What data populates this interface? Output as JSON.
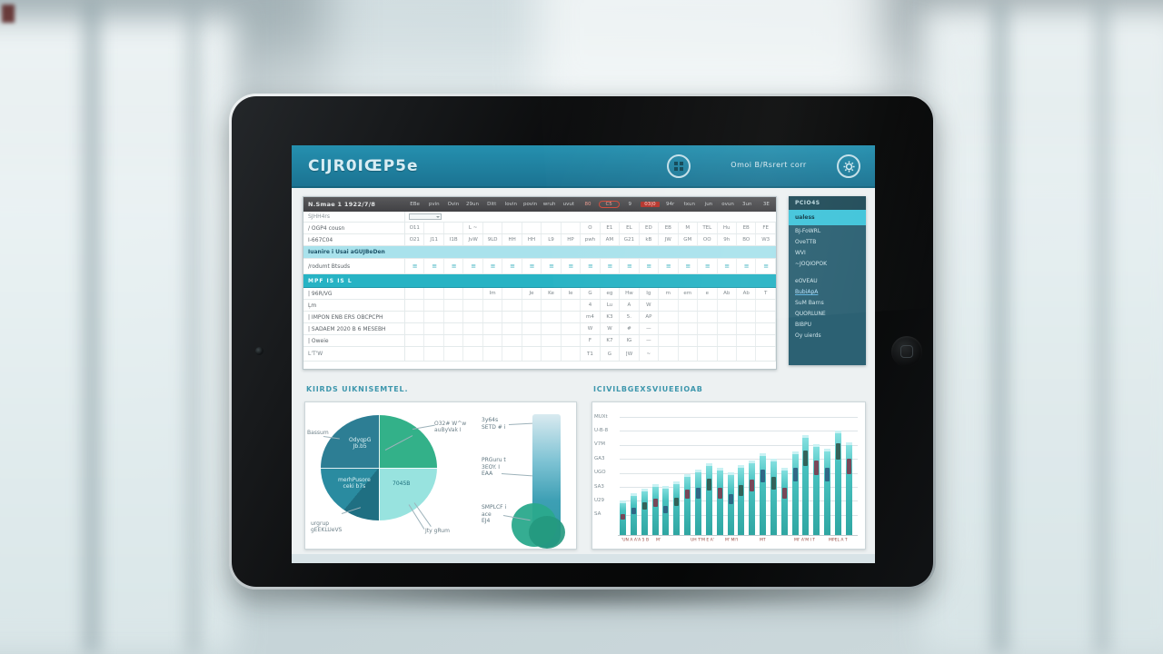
{
  "app": {
    "header": {
      "title": "ClJR0IŒP5e",
      "user": "Omoi B/Rsrert corr",
      "icons": {
        "apps": "apps-grid-icon",
        "settings": "gear-icon"
      }
    },
    "sheet": {
      "toolbar_label": "N.Smae 1 1922/7/8",
      "columns": [
        {
          "t": "EBe"
        },
        {
          "t": "pvin"
        },
        {
          "t": "Ovin"
        },
        {
          "t": "29un"
        },
        {
          "t": "Ditt"
        },
        {
          "t": "lovin"
        },
        {
          "t": "povin"
        },
        {
          "t": "wruh"
        },
        {
          "t": "uvut"
        },
        {
          "t": "80",
          "flag": "tint"
        },
        {
          "t": "C5",
          "flag": "oval"
        },
        {
          "t": "9"
        },
        {
          "t": "03|0",
          "flag": "red"
        },
        {
          "t": "94r"
        },
        {
          "t": "txun"
        },
        {
          "t": "jun"
        },
        {
          "t": "ovun"
        },
        {
          "t": "3un"
        },
        {
          "t": "3E"
        }
      ],
      "rows": [
        {
          "label": "SJHH4rs",
          "style": "sub",
          "cells": []
        },
        {
          "label": "/ OGP4 cousn",
          "style": "plain",
          "cells": [
            "O11",
            "",
            "",
            "L ~",
            "",
            "",
            "",
            "",
            "",
            "O",
            "E1",
            "EL",
            "ED",
            "EB",
            "M",
            "TEL",
            "Hu",
            "EB",
            "FE"
          ]
        },
        {
          "label": "I-667C04",
          "style": "plain",
          "cells": [
            "O21",
            "J11",
            "I1B",
            "JvW",
            "9LD",
            "HH",
            "HH",
            "L9",
            "HP",
            "pwh",
            "AM",
            "G21",
            "kB",
            "JW",
            "GM",
            "OO",
            "9h",
            "BO",
            "W3"
          ]
        },
        {
          "label": "Iuanire i Usai aGUJBeDen",
          "style": "cyan",
          "cells": []
        },
        {
          "label": "/rodumt Btsuds",
          "style": "marks",
          "fill": "≡",
          "cells": []
        },
        {
          "label": "MPF IS IS L",
          "style": "teal",
          "cells": []
        },
        {
          "label": "| 96R/VG",
          "style": "plain",
          "cells": [
            "",
            "",
            "",
            "",
            "Im",
            "",
            "Je",
            "Ke",
            "Ie",
            "G",
            "eg",
            "Hw",
            "Ig",
            "m",
            "em",
            "e",
            "Ab",
            "Ab",
            "T"
          ]
        },
        {
          "label": "Ļm",
          "style": "plain",
          "cells": [
            "",
            "",
            "",
            "",
            "",
            "",
            "",
            "",
            "",
            "4",
            "Lu",
            "A",
            "W",
            "",
            "",
            "",
            "",
            "",
            ""
          ]
        },
        {
          "label": "| IMPON ENB ERS OBCPCPH",
          "style": "plain",
          "cells": [
            "",
            "",
            "",
            "",
            "",
            "",
            "",
            "",
            "",
            "m4",
            "K3",
            "5.",
            "AP",
            "",
            "",
            "",
            "",
            "",
            ""
          ]
        },
        {
          "label": "| SADAEM 2020 B 6 MESEBH",
          "style": "plain",
          "cells": [
            "",
            "",
            "",
            "",
            "",
            "",
            "",
            "",
            "",
            "W",
            "W",
            "#",
            "—",
            "",
            "",
            "",
            "",
            "",
            ""
          ]
        },
        {
          "label": "| Oweie",
          "style": "plain",
          "cells": [
            "",
            "",
            "",
            "",
            "",
            "",
            "",
            "",
            "",
            "F",
            "K7",
            "IG",
            "—",
            "",
            "",
            "",
            "",
            "",
            ""
          ]
        },
        {
          "label": "L'T'W",
          "style": "last",
          "cells": [
            "",
            "",
            "",
            "",
            "",
            "",
            "",
            "",
            "",
            "T1",
            "G",
            "[W",
            "~",
            "",
            "",
            "",
            "",
            "",
            ""
          ]
        }
      ]
    },
    "sidebar": {
      "items": [
        {
          "label": "PCIO4S",
          "style": "head"
        },
        {
          "label": "ualess",
          "style": "active"
        },
        {
          "label": "BJ-FoWRL"
        },
        {
          "label": "OveTTB"
        },
        {
          "label": "WVI"
        },
        {
          "label": "~JOQIOPOK"
        },
        {
          "label": "eOVEAU",
          "style": "gap"
        },
        {
          "label": "BubiApA",
          "style": "link"
        },
        {
          "label": "SuM Barns"
        },
        {
          "label": "QUORLUNE"
        },
        {
          "label": "BIBPU"
        },
        {
          "label": "Oy uierds"
        }
      ]
    },
    "left_panel": {
      "title": "KIIRDS UIKNISEMTEL.",
      "pie_inner_labels": [
        {
          "text": "OdyqpG\nJb.b5",
          "pos": "tl"
        },
        {
          "text": "merhPusore\nceki b7s",
          "pos": "bl"
        },
        {
          "text": "7045B",
          "pos": "br"
        }
      ],
      "pie_callouts": [
        {
          "text": "Bassum",
          "pos": "left"
        },
        {
          "text": "O32# W^w\nauByVak I",
          "pos": "tr"
        },
        {
          "text": "Jty gRum",
          "pos": "brc"
        },
        {
          "text": "urgrup\ngEEKLUeVS",
          "pos": "blc"
        }
      ],
      "funnel_labels": [
        {
          "text": "3y64s\nSETD # i"
        },
        {
          "text": "PRGuru t\n3EOY. I\nEAA"
        },
        {
          "text": "SMPLCF i\nace\nEJ4"
        }
      ]
    },
    "right_panel": {
      "title": "ICIVILBGEXSVIUEEIOAB"
    }
  },
  "chart_data": [
    {
      "type": "pie",
      "title": "KIIRDS UIKNISEMTEL.",
      "slices": [
        {
          "label": "O32# W^w auByVak I",
          "value": 25,
          "color": "#33b189"
        },
        {
          "label": "7045B",
          "value": 25,
          "color": "#98e3df"
        },
        {
          "label": "merhPusore ceki b7s / gEEKLUeVS",
          "value": 25,
          "color": "#2a8ba0"
        },
        {
          "label": "OdyqpG Jb.b5 / Bassum",
          "value": 25,
          "color": "#2d7e94"
        }
      ],
      "legend_position": "callouts"
    },
    {
      "type": "area",
      "subtype": "gradient-column-gauge",
      "stages": [
        {
          "label": "3y64s SETD #",
          "color": "#d9eaf0"
        },
        {
          "label": "PRGuru t 3EOY. I EAA",
          "color": "#3d9fb4"
        },
        {
          "label": "SMPLCF ace EJ4",
          "color": "#2aa98c"
        }
      ]
    },
    {
      "type": "bar",
      "title": "ICIVILBGEXSVIUEEIOAB",
      "y_labels": [
        "MUXt",
        "U-B-8",
        "V7M",
        "GA3",
        "UGO",
        "SA3",
        "U29",
        "SA"
      ],
      "x_labels": [
        "'UN A A'A 5 B",
        "M'",
        "UH T'M E A'",
        "M' MI'I",
        "MT",
        "MI' A'M I T",
        "MPEL A T"
      ],
      "values": [
        30,
        36,
        40,
        44,
        42,
        46,
        52,
        56,
        62,
        58,
        54,
        60,
        64,
        70,
        66,
        58,
        72,
        86,
        78,
        74,
        90,
        80
      ],
      "seg_offsets": [
        40,
        35,
        30,
        28,
        40,
        30,
        25,
        28,
        22,
        30,
        35,
        28,
        25,
        20,
        24,
        30,
        20,
        15,
        18,
        22,
        12,
        18
      ],
      "bar_color": "#49c2c0",
      "seg_colors": [
        "#7d3a4e",
        "#2e5e80",
        "#31584e"
      ],
      "grid": true
    }
  ]
}
